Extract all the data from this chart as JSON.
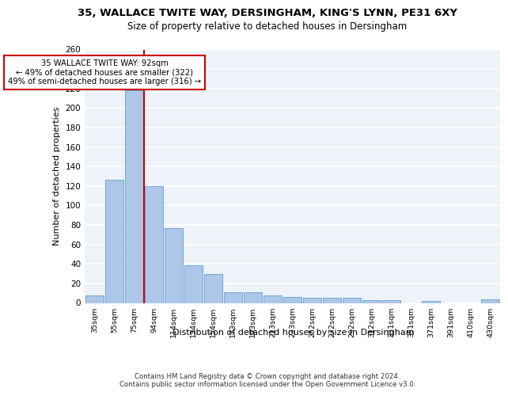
{
  "title_line1": "35, WALLACE TWITE WAY, DERSINGHAM, KING'S LYNN, PE31 6XY",
  "title_line2": "Size of property relative to detached houses in Dersingham",
  "xlabel": "Distribution of detached houses by size in Dersingham",
  "ylabel": "Number of detached properties",
  "categories": [
    "35sqm",
    "55sqm",
    "75sqm",
    "94sqm",
    "114sqm",
    "134sqm",
    "154sqm",
    "173sqm",
    "193sqm",
    "213sqm",
    "233sqm",
    "252sqm",
    "272sqm",
    "292sqm",
    "312sqm",
    "331sqm",
    "351sqm",
    "371sqm",
    "391sqm",
    "410sqm",
    "430sqm"
  ],
  "values": [
    8,
    126,
    218,
    120,
    77,
    39,
    30,
    11,
    11,
    8,
    6,
    5,
    5,
    5,
    3,
    3,
    0,
    2,
    0,
    0,
    4
  ],
  "bar_color": "#aec6e8",
  "bar_edgecolor": "#6aaad4",
  "vline_color": "#cc0000",
  "annotation_line1": "35 WALLACE TWITE WAY: 92sqm",
  "annotation_line2": "← 49% of detached houses are smaller (322)",
  "annotation_line3": "49% of semi-detached houses are larger (316) →",
  "annotation_box_edgecolor": "#cc0000",
  "background_color": "#eef2f9",
  "grid_color": "#ffffff",
  "ylim": [
    0,
    260
  ],
  "yticks": [
    0,
    20,
    40,
    60,
    80,
    100,
    120,
    140,
    160,
    180,
    200,
    220,
    240,
    260
  ],
  "footer_line1": "Contains HM Land Registry data © Crown copyright and database right 2024.",
  "footer_line2": "Contains public sector information licensed under the Open Government Licence v3.0."
}
